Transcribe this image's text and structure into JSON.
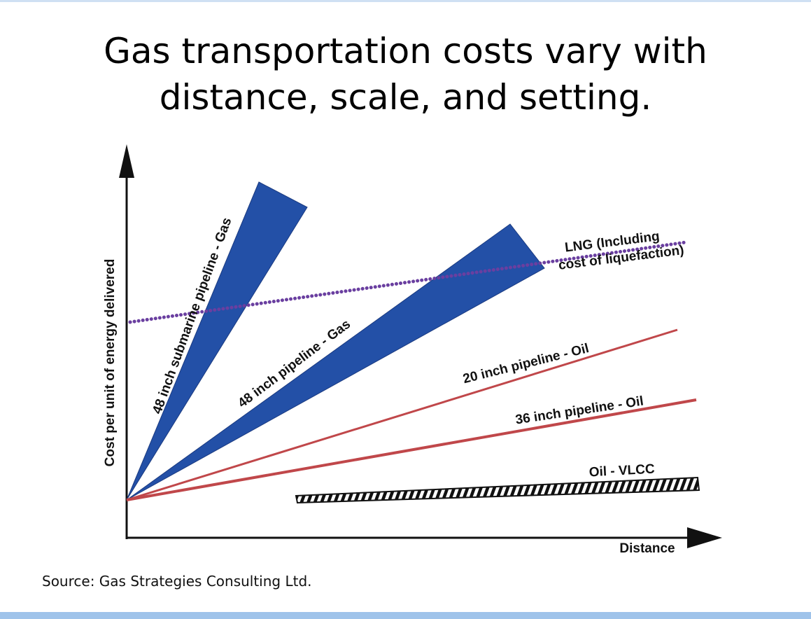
{
  "slide": {
    "title_line1": "Gas transportation costs vary with",
    "title_line2": "distance, scale, and setting.",
    "source": "Source:  Gas Strategies Consulting Ltd."
  },
  "colors": {
    "gas_pipeline_fill": "#2350a7",
    "oil_pipeline_line": "#c0474a",
    "lng_dots": "#6a3fa0",
    "axis": "#111111",
    "vlcc_stripe": "#111111"
  },
  "chart_data": {
    "type": "line",
    "xlabel": "Distance",
    "ylabel": "Cost per unit of energy delivered",
    "x_ticks": "none",
    "y_ticks": "none",
    "xlim": [
      0,
      100
    ],
    "ylim": [
      0,
      100
    ],
    "series": [
      {
        "name": "48 inch submarine pipeline - Gas",
        "style": "wedge",
        "x": [
          0,
          41
        ],
        "y_low": [
          10,
          75
        ],
        "y_high": [
          10,
          86
        ]
      },
      {
        "name": "48 inch pipeline - Gas",
        "style": "wedge",
        "x": [
          0,
          65
        ],
        "y_low": [
          10,
          69
        ],
        "y_high": [
          10,
          79
        ]
      },
      {
        "name": "LNG (Including cost of liquefaction)",
        "style": "dotted",
        "x": [
          0,
          97
        ],
        "y": [
          56,
          73
        ]
      },
      {
        "name": "20 inch pipeline - Oil",
        "style": "solid",
        "x": [
          0,
          96
        ],
        "y": [
          10,
          54
        ]
      },
      {
        "name": "36 inch pipeline - Oil",
        "style": "solid",
        "x": [
          0,
          99
        ],
        "y": [
          10,
          35
        ]
      },
      {
        "name": "Oil - VLCC",
        "style": "hatched",
        "x": [
          30,
          100
        ],
        "y": [
          9.5,
          14.5
        ]
      }
    ]
  }
}
